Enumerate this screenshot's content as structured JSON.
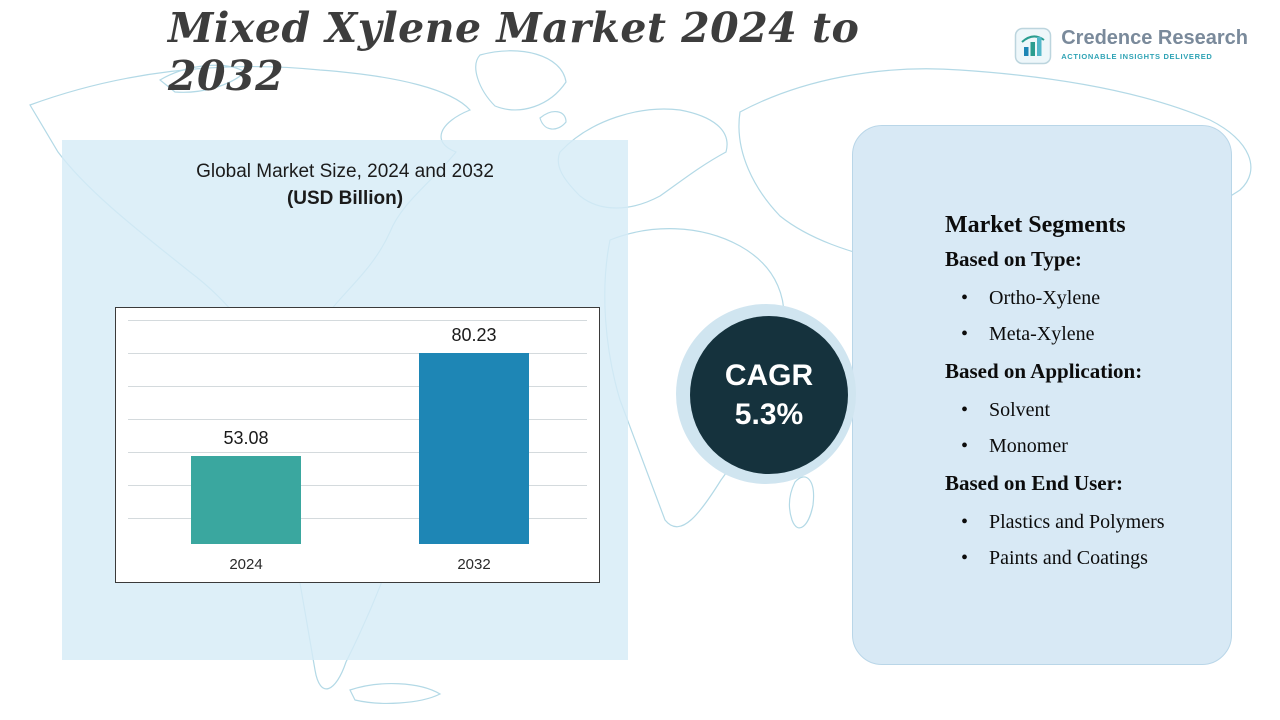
{
  "header": {
    "title": "Mixed Xylene Market 2024 to 2032",
    "logo": {
      "name": "Credence Research",
      "tagline": "Actionable Insights Delivered"
    }
  },
  "chart_panel": {
    "title_line1": "Global Market Size, 2024 and 2032",
    "title_line2": "(USD Billion)"
  },
  "chart_data": {
    "type": "bar",
    "title": "Global Market Size, 2024 and 2032 (USD Billion)",
    "categories": [
      "2024",
      "2032"
    ],
    "values": [
      53.08,
      80.23
    ],
    "value_labels": [
      "53.08",
      "80.23"
    ],
    "xlabel": "",
    "ylabel": "",
    "ylim": [
      30,
      90
    ],
    "grid": true,
    "legend": "none",
    "bar_colors": [
      "#3aa79f",
      "#1e86b5"
    ]
  },
  "cagr": {
    "label": "CAGR",
    "value": "5.3%"
  },
  "segments": {
    "title": "Market Segments",
    "groups": [
      {
        "heading": "Based on Type:",
        "items": [
          "Ortho-Xylene",
          "Meta-Xylene"
        ]
      },
      {
        "heading": "Based on Application:",
        "items": [
          "Solvent",
          "Monomer"
        ]
      },
      {
        "heading": "Based on End User:",
        "items": [
          "Plastics and Polymers",
          "Paints and Coatings"
        ]
      }
    ]
  },
  "colors": {
    "bar_2024": "#3aa79f",
    "bar_2032": "#1e86b5",
    "cagr_disc": "#15323d",
    "panel_bg": "#d8e9f5",
    "map_stroke": "#b3d9e6"
  }
}
